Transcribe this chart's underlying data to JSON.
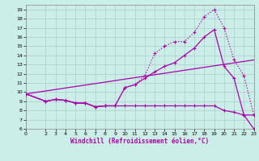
{
  "xlabel": "Windchill (Refroidissement éolien,°C)",
  "background_color": "#cceee8",
  "grid_color": "#aacccc",
  "line_color": "#aa00aa",
  "xlim": [
    0,
    23
  ],
  "ylim": [
    6,
    19.5
  ],
  "xticks": [
    0,
    2,
    3,
    4,
    5,
    6,
    7,
    8,
    9,
    10,
    11,
    12,
    13,
    14,
    15,
    16,
    17,
    18,
    19,
    20,
    21,
    22,
    23
  ],
  "yticks": [
    6,
    7,
    8,
    9,
    10,
    11,
    12,
    13,
    14,
    15,
    16,
    17,
    18,
    19
  ],
  "curve1_x": [
    0,
    2,
    3,
    4,
    5,
    6,
    7,
    8,
    9,
    10,
    11,
    12,
    13,
    14,
    15,
    16,
    17,
    18,
    19,
    20,
    21,
    22,
    23
  ],
  "curve1_y": [
    9.8,
    9.0,
    9.2,
    9.1,
    8.8,
    8.8,
    8.4,
    8.5,
    8.5,
    8.5,
    8.5,
    8.5,
    8.5,
    8.5,
    8.5,
    8.5,
    8.5,
    8.5,
    8.5,
    8.0,
    7.8,
    7.5,
    7.5
  ],
  "curve2_x": [
    0,
    23
  ],
  "curve2_y": [
    9.8,
    13.5
  ],
  "curve3_x": [
    0,
    2,
    3,
    4,
    5,
    6,
    7,
    8,
    9,
    10,
    11,
    12,
    13,
    14,
    15,
    16,
    17,
    18,
    19,
    20,
    21,
    22,
    23
  ],
  "curve3_y": [
    9.8,
    9.0,
    9.2,
    9.1,
    8.8,
    8.8,
    8.4,
    8.5,
    8.5,
    10.5,
    10.8,
    11.5,
    12.2,
    12.8,
    13.2,
    14.0,
    14.8,
    16.0,
    16.8,
    12.8,
    11.5,
    7.5,
    6.0
  ],
  "curve4_x": [
    0,
    2,
    3,
    4,
    5,
    6,
    7,
    8,
    9,
    10,
    11,
    12,
    13,
    14,
    15,
    16,
    17,
    18,
    19,
    20,
    21,
    22,
    23
  ],
  "curve4_y": [
    9.8,
    9.0,
    9.2,
    9.1,
    8.8,
    8.8,
    8.4,
    8.5,
    8.5,
    10.5,
    10.8,
    11.8,
    14.2,
    15.0,
    15.5,
    15.5,
    16.5,
    18.2,
    19.0,
    17.0,
    13.5,
    11.8,
    7.5
  ]
}
